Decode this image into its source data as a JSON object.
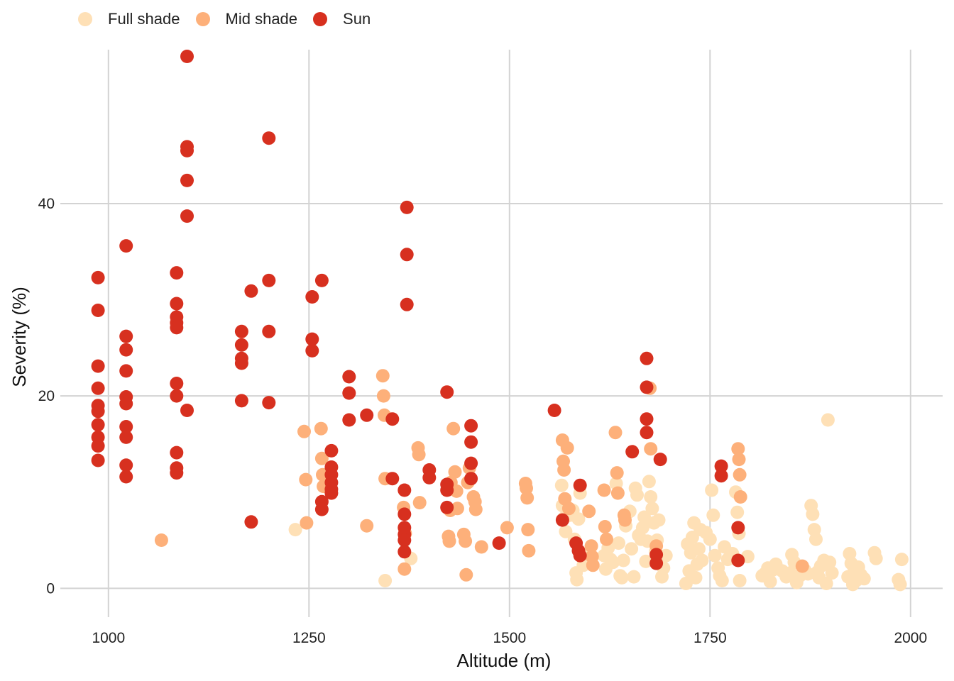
{
  "chart_data": {
    "type": "scatter",
    "xlabel": "Altitude (m)",
    "ylabel": "Severity (%)",
    "xlim": [
      940,
      2040
    ],
    "ylim": [
      -3,
      56
    ],
    "xticks": [
      1000,
      1250,
      1500,
      1750,
      2000
    ],
    "yticks": [
      0,
      20,
      40
    ],
    "grid": true,
    "legend_position": "top-left",
    "series": [
      {
        "name": "Full shade",
        "color": "#fee0b6",
        "points": [
          [
            1233,
            6.1
          ],
          [
            1345,
            0.8
          ],
          [
            1377,
            3.1
          ],
          [
            1565,
            10.7
          ],
          [
            1566,
            8.6
          ],
          [
            1568,
            7.3
          ],
          [
            1570,
            5.9
          ],
          [
            1575,
            7.6
          ],
          [
            1579,
            8.1
          ],
          [
            1581,
            5.1
          ],
          [
            1583,
            1.6
          ],
          [
            1584,
            0.9
          ],
          [
            1586,
            7.2
          ],
          [
            1588,
            9.9
          ],
          [
            1592,
            2.4
          ],
          [
            1596,
            3.6
          ],
          [
            1598,
            2.6
          ],
          [
            1618,
            3.4
          ],
          [
            1620,
            2.0
          ],
          [
            1623,
            4.2
          ],
          [
            1626,
            3.0
          ],
          [
            1629,
            2.7
          ],
          [
            1633,
            10.9
          ],
          [
            1636,
            4.7
          ],
          [
            1638,
            1.3
          ],
          [
            1640,
            1.1
          ],
          [
            1642,
            2.9
          ],
          [
            1645,
            6.5
          ],
          [
            1650,
            8.0
          ],
          [
            1652,
            4.1
          ],
          [
            1655,
            1.2
          ],
          [
            1657,
            10.4
          ],
          [
            1659,
            9.7
          ],
          [
            1661,
            5.5
          ],
          [
            1664,
            5.1
          ],
          [
            1666,
            6.3
          ],
          [
            1668,
            7.4
          ],
          [
            1670,
            2.8
          ],
          [
            1672,
            4.9
          ],
          [
            1674,
            11.1
          ],
          [
            1676,
            9.5
          ],
          [
            1678,
            8.3
          ],
          [
            1680,
            6.8
          ],
          [
            1682,
            3.8
          ],
          [
            1684,
            5.0
          ],
          [
            1686,
            7.1
          ],
          [
            1688,
            3.1
          ],
          [
            1690,
            1.2
          ],
          [
            1692,
            2.1
          ],
          [
            1695,
            3.4
          ],
          [
            1720,
            0.5
          ],
          [
            1722,
            4.6
          ],
          [
            1724,
            1.8
          ],
          [
            1726,
            3.7
          ],
          [
            1728,
            5.3
          ],
          [
            1730,
            6.8
          ],
          [
            1732,
            1.1
          ],
          [
            1734,
            2.5
          ],
          [
            1736,
            4.1
          ],
          [
            1738,
            6.1
          ],
          [
            1740,
            2.9
          ],
          [
            1745,
            5.8
          ],
          [
            1750,
            5.1
          ],
          [
            1752,
            10.2
          ],
          [
            1754,
            7.6
          ],
          [
            1756,
            3.4
          ],
          [
            1760,
            2.1
          ],
          [
            1762,
            1.3
          ],
          [
            1765,
            0.8
          ],
          [
            1768,
            4.3
          ],
          [
            1772,
            3.0
          ],
          [
            1778,
            3.6
          ],
          [
            1782,
            10.0
          ],
          [
            1784,
            7.9
          ],
          [
            1786,
            5.7
          ],
          [
            1787,
            0.8
          ],
          [
            1797,
            3.3
          ],
          [
            1815,
            1.3
          ],
          [
            1818,
            1.5
          ],
          [
            1822,
            2.1
          ],
          [
            1825,
            0.7
          ],
          [
            1828,
            1.9
          ],
          [
            1832,
            2.5
          ],
          [
            1840,
            1.8
          ],
          [
            1845,
            1.2
          ],
          [
            1850,
            1.6
          ],
          [
            1852,
            3.5
          ],
          [
            1855,
            2.7
          ],
          [
            1858,
            0.6
          ],
          [
            1862,
            1.3
          ],
          [
            1868,
            1.9
          ],
          [
            1872,
            1.5
          ],
          [
            1876,
            8.6
          ],
          [
            1878,
            7.7
          ],
          [
            1880,
            6.1
          ],
          [
            1882,
            5.1
          ],
          [
            1884,
            1.7
          ],
          [
            1886,
            1.1
          ],
          [
            1888,
            2.3
          ],
          [
            1892,
            2.9
          ],
          [
            1895,
            0.5
          ],
          [
            1897,
            17.5
          ],
          [
            1899,
            2.7
          ],
          [
            1902,
            1.6
          ],
          [
            1922,
            1.2
          ],
          [
            1924,
            3.6
          ],
          [
            1926,
            2.6
          ],
          [
            1928,
            0.4
          ],
          [
            1930,
            1.9
          ],
          [
            1932,
            0.8
          ],
          [
            1935,
            2.2
          ],
          [
            1938,
            1.4
          ],
          [
            1942,
            1.0
          ],
          [
            1955,
            3.7
          ],
          [
            1957,
            3.1
          ],
          [
            1985,
            0.9
          ],
          [
            1987,
            0.4
          ],
          [
            1989,
            3.0
          ]
        ]
      },
      {
        "name": "Mid shade",
        "color": "#fdb07a",
        "points": [
          [
            1066,
            5.0
          ],
          [
            1244,
            16.3
          ],
          [
            1246,
            11.3
          ],
          [
            1247,
            6.8
          ],
          [
            1265,
            16.6
          ],
          [
            1266,
            13.5
          ],
          [
            1267,
            11.8
          ],
          [
            1268,
            10.6
          ],
          [
            1322,
            6.5
          ],
          [
            1342,
            22.1
          ],
          [
            1343,
            20.0
          ],
          [
            1344,
            18.0
          ],
          [
            1345,
            11.4
          ],
          [
            1368,
            8.4
          ],
          [
            1369,
            2.0
          ],
          [
            1370,
            5.7
          ],
          [
            1386,
            14.6
          ],
          [
            1387,
            13.9
          ],
          [
            1388,
            8.9
          ],
          [
            1424,
            5.4
          ],
          [
            1425,
            4.9
          ],
          [
            1426,
            8.1
          ],
          [
            1427,
            11.0
          ],
          [
            1430,
            16.6
          ],
          [
            1432,
            12.1
          ],
          [
            1434,
            10.1
          ],
          [
            1435,
            8.3
          ],
          [
            1443,
            5.6
          ],
          [
            1445,
            4.9
          ],
          [
            1446,
            1.4
          ],
          [
            1448,
            11.0
          ],
          [
            1450,
            12.5
          ],
          [
            1455,
            9.5
          ],
          [
            1457,
            9.0
          ],
          [
            1458,
            8.2
          ],
          [
            1465,
            4.3
          ],
          [
            1497,
            6.3
          ],
          [
            1520,
            10.9
          ],
          [
            1521,
            10.4
          ],
          [
            1522,
            9.4
          ],
          [
            1523,
            6.1
          ],
          [
            1524,
            3.9
          ],
          [
            1566,
            15.4
          ],
          [
            1567,
            13.2
          ],
          [
            1568,
            12.3
          ],
          [
            1569,
            9.3
          ],
          [
            1572,
            14.6
          ],
          [
            1574,
            8.3
          ],
          [
            1599,
            8.0
          ],
          [
            1602,
            4.4
          ],
          [
            1603,
            3.3
          ],
          [
            1604,
            2.4
          ],
          [
            1618,
            10.2
          ],
          [
            1619,
            6.4
          ],
          [
            1621,
            5.1
          ],
          [
            1632,
            16.2
          ],
          [
            1634,
            12.0
          ],
          [
            1635,
            9.9
          ],
          [
            1643,
            7.6
          ],
          [
            1644,
            7.1
          ],
          [
            1675,
            20.8
          ],
          [
            1676,
            14.5
          ],
          [
            1683,
            4.4
          ],
          [
            1785,
            14.5
          ],
          [
            1786,
            13.4
          ],
          [
            1787,
            11.8
          ],
          [
            1788,
            9.5
          ],
          [
            1865,
            2.3
          ]
        ]
      },
      {
        "name": "Sun",
        "color": "#d7301f",
        "points": [
          [
            987,
            32.3
          ],
          [
            987,
            28.9
          ],
          [
            987,
            23.1
          ],
          [
            987,
            20.8
          ],
          [
            987,
            19.0
          ],
          [
            987,
            18.4
          ],
          [
            987,
            17.0
          ],
          [
            987,
            15.7
          ],
          [
            987,
            14.8
          ],
          [
            987,
            13.3
          ],
          [
            1022,
            35.6
          ],
          [
            1022,
            26.2
          ],
          [
            1022,
            24.8
          ],
          [
            1022,
            22.6
          ],
          [
            1022,
            19.9
          ],
          [
            1022,
            19.2
          ],
          [
            1022,
            16.8
          ],
          [
            1022,
            15.7
          ],
          [
            1022,
            12.8
          ],
          [
            1022,
            11.6
          ],
          [
            1085,
            32.8
          ],
          [
            1085,
            29.6
          ],
          [
            1085,
            28.2
          ],
          [
            1085,
            27.6
          ],
          [
            1085,
            27.1
          ],
          [
            1085,
            21.3
          ],
          [
            1085,
            20.0
          ],
          [
            1085,
            14.1
          ],
          [
            1085,
            12.5
          ],
          [
            1085,
            12.0
          ],
          [
            1098,
            55.3
          ],
          [
            1098,
            45.9
          ],
          [
            1098,
            45.5
          ],
          [
            1098,
            42.4
          ],
          [
            1098,
            38.7
          ],
          [
            1098,
            18.5
          ],
          [
            1166,
            26.7
          ],
          [
            1166,
            25.3
          ],
          [
            1166,
            23.9
          ],
          [
            1166,
            23.4
          ],
          [
            1166,
            19.5
          ],
          [
            1178,
            30.9
          ],
          [
            1178,
            6.9
          ],
          [
            1200,
            46.8
          ],
          [
            1200,
            32.0
          ],
          [
            1200,
            26.7
          ],
          [
            1200,
            19.3
          ],
          [
            1254,
            30.3
          ],
          [
            1254,
            25.9
          ],
          [
            1254,
            24.7
          ],
          [
            1266,
            32.0
          ],
          [
            1266,
            9.0
          ],
          [
            1266,
            8.2
          ],
          [
            1278,
            14.3
          ],
          [
            1278,
            12.6
          ],
          [
            1278,
            11.8
          ],
          [
            1278,
            11.0
          ],
          [
            1278,
            10.3
          ],
          [
            1278,
            9.9
          ],
          [
            1300,
            22.0
          ],
          [
            1300,
            20.3
          ],
          [
            1300,
            17.5
          ],
          [
            1322,
            18.0
          ],
          [
            1354,
            17.6
          ],
          [
            1354,
            11.4
          ],
          [
            1369,
            10.2
          ],
          [
            1369,
            7.7
          ],
          [
            1369,
            6.3
          ],
          [
            1369,
            5.6
          ],
          [
            1369,
            5.0
          ],
          [
            1369,
            3.8
          ],
          [
            1372,
            39.6
          ],
          [
            1372,
            34.7
          ],
          [
            1372,
            29.5
          ],
          [
            1400,
            12.3
          ],
          [
            1400,
            11.5
          ],
          [
            1422,
            20.4
          ],
          [
            1422,
            10.8
          ],
          [
            1422,
            10.2
          ],
          [
            1422,
            8.4
          ],
          [
            1452,
            16.9
          ],
          [
            1452,
            15.2
          ],
          [
            1452,
            13.0
          ],
          [
            1452,
            11.4
          ],
          [
            1487,
            4.7
          ],
          [
            1556,
            18.5
          ],
          [
            1566,
            7.1
          ],
          [
            1583,
            4.7
          ],
          [
            1586,
            3.9
          ],
          [
            1588,
            10.7
          ],
          [
            1588,
            3.4
          ],
          [
            1653,
            14.2
          ],
          [
            1671,
            23.9
          ],
          [
            1671,
            20.9
          ],
          [
            1671,
            17.6
          ],
          [
            1671,
            16.2
          ],
          [
            1683,
            2.6
          ],
          [
            1683,
            3.5
          ],
          [
            1688,
            13.4
          ],
          [
            1764,
            12.7
          ],
          [
            1764,
            11.7
          ],
          [
            1785,
            6.3
          ],
          [
            1785,
            2.9
          ]
        ]
      }
    ]
  }
}
